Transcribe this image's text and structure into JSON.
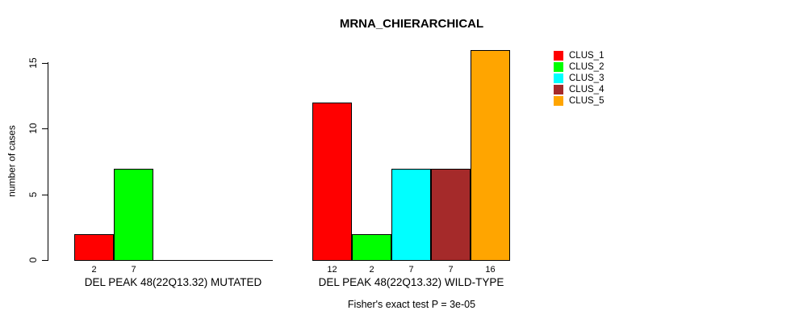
{
  "figure": {
    "title": "MRNA_CHIERARCHICAL",
    "footnote": "Fisher's exact test P = 3e-05"
  },
  "chart_data": {
    "type": "bar",
    "title": "MRNA_CHIERARCHICAL",
    "ylabel": "number of cases",
    "xlabel": "",
    "ylim": [
      0,
      16
    ],
    "yticks": [
      0,
      5,
      10,
      15
    ],
    "grid": false,
    "legend_position": "top-right",
    "categories": [
      "DEL PEAK 48(22Q13.32) MUTATED",
      "DEL PEAK 48(22Q13.32) WILD-TYPE"
    ],
    "series": [
      {
        "name": "CLUS_1",
        "color": "#FF0000",
        "values": [
          2,
          12
        ]
      },
      {
        "name": "CLUS_2",
        "color": "#00FF00",
        "values": [
          7,
          2
        ]
      },
      {
        "name": "CLUS_3",
        "color": "#00FFFF",
        "values": [
          0,
          7
        ]
      },
      {
        "name": "CLUS_4",
        "color": "#A52A2A",
        "values": [
          0,
          7
        ]
      },
      {
        "name": "CLUS_5",
        "color": "#FFA500",
        "values": [
          0,
          16
        ]
      }
    ],
    "bar_value_labels": [
      [
        "2",
        "7",
        "",
        "",
        ""
      ],
      [
        "12",
        "2",
        "7",
        "7",
        "16"
      ]
    ],
    "footnote": "Fisher's exact test P = 3e-05",
    "bar_border_color": "#000000"
  }
}
